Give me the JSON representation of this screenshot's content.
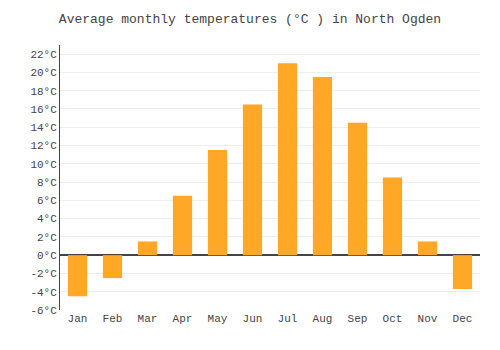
{
  "chart_data": {
    "type": "bar",
    "title": "Average monthly temperatures (°C ) in North Ogden",
    "categories": [
      "Jan",
      "Feb",
      "Mar",
      "Apr",
      "May",
      "Jun",
      "Jul",
      "Aug",
      "Sep",
      "Oct",
      "Nov",
      "Dec"
    ],
    "values": [
      -4.5,
      -2.5,
      1.5,
      6.5,
      11.5,
      16.5,
      21.0,
      19.5,
      14.5,
      8.5,
      1.5,
      -3.7
    ],
    "color": "#FFA726",
    "ylim": [
      -6,
      23
    ],
    "yticks": [
      {
        "value": -6,
        "label": "-6°C"
      },
      {
        "value": -4,
        "label": "-4°C"
      },
      {
        "value": -2,
        "label": "-2°C"
      },
      {
        "value": 0,
        "label": "0°C"
      },
      {
        "value": 2,
        "label": "2°C"
      },
      {
        "value": 4,
        "label": "4°C"
      },
      {
        "value": 6,
        "label": "6°C"
      },
      {
        "value": 8,
        "label": "8°C"
      },
      {
        "value": 10,
        "label": "10°C"
      },
      {
        "value": 12,
        "label": "12°C"
      },
      {
        "value": 14,
        "label": "14°C"
      },
      {
        "value": 16,
        "label": "16°C"
      },
      {
        "value": 18,
        "label": "18°C"
      },
      {
        "value": 20,
        "label": "20°C"
      },
      {
        "value": 22,
        "label": "22°C"
      }
    ],
    "grid": true
  }
}
